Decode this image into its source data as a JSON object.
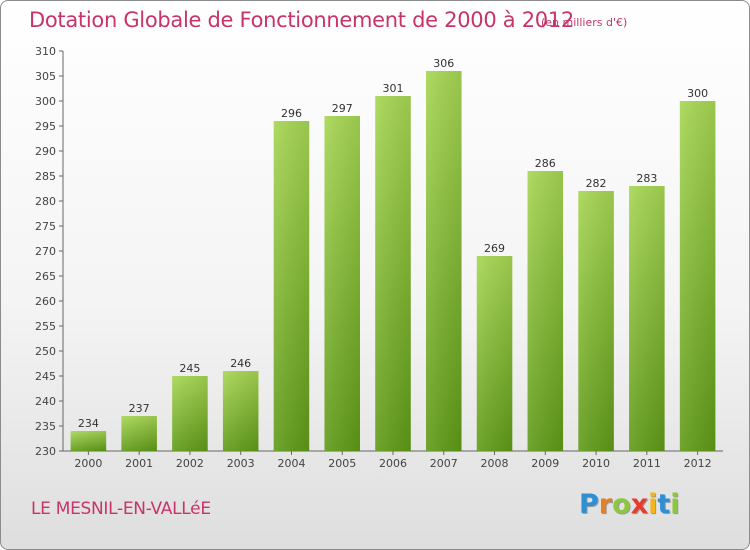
{
  "chart_data": {
    "type": "bar",
    "title": "Dotation Globale de Fonctionnement de 2000 à 2012",
    "subtitle": "(en milliers d'€)",
    "categories": [
      "2000",
      "2001",
      "2002",
      "2003",
      "2004",
      "2005",
      "2006",
      "2007",
      "2008",
      "2009",
      "2010",
      "2011",
      "2012"
    ],
    "values": [
      234,
      237,
      245,
      246,
      296,
      297,
      301,
      306,
      269,
      286,
      282,
      283,
      300
    ],
    "ylim": [
      230,
      310
    ],
    "yticks": [
      230,
      235,
      240,
      245,
      250,
      255,
      260,
      265,
      270,
      275,
      280,
      285,
      290,
      295,
      300,
      305,
      310
    ],
    "xlabel": "",
    "ylabel": "",
    "grid": false,
    "bar_color": "#7ab52e"
  },
  "footer": {
    "commune": "LE MESNIL-EN-VALLéE",
    "brand_letters": [
      {
        "ch": "P",
        "color": "#2f8fd3"
      },
      {
        "ch": "r",
        "color": "#e67e22"
      },
      {
        "ch": "o",
        "color": "#8dc63f"
      },
      {
        "ch": "x",
        "color": "#e63e2e"
      },
      {
        "ch": "i",
        "color": "#f2b51a"
      },
      {
        "ch": "t",
        "color": "#2f8fd3"
      },
      {
        "ch": "i",
        "color": "#8dc63f"
      }
    ]
  }
}
